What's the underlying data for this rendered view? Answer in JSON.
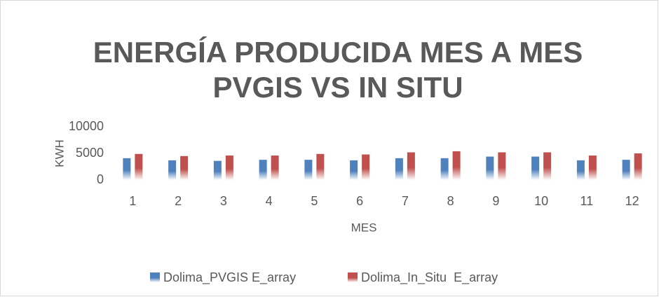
{
  "chart_data": {
    "type": "bar",
    "title": [
      "ENERGÍA PRODUCIDA MES A MES",
      "PVGIS VS IN SITU"
    ],
    "x_label": "MES",
    "y_label": "KWH",
    "categories": [
      "1",
      "2",
      "3",
      "4",
      "5",
      "6",
      "7",
      "8",
      "9",
      "10",
      "11",
      "12"
    ],
    "series": [
      {
        "name": "Dolima_PVGIS E_array",
        "color": "#4f81bd",
        "values": [
          4100,
          3700,
          3600,
          3800,
          3800,
          3700,
          4100,
          4100,
          4400,
          4400,
          3700,
          3800
        ]
      },
      {
        "name": "Dolima_In_Situ  E_array",
        "color": "#c0504d",
        "values": [
          4900,
          4500,
          4600,
          4600,
          4900,
          4800,
          5200,
          5400,
          5200,
          5200,
          4600,
          5000
        ]
      }
    ],
    "ylim": [
      0,
      10000
    ],
    "yticks": [
      0,
      5000,
      10000
    ],
    "grid": false,
    "legend": "bottom"
  }
}
